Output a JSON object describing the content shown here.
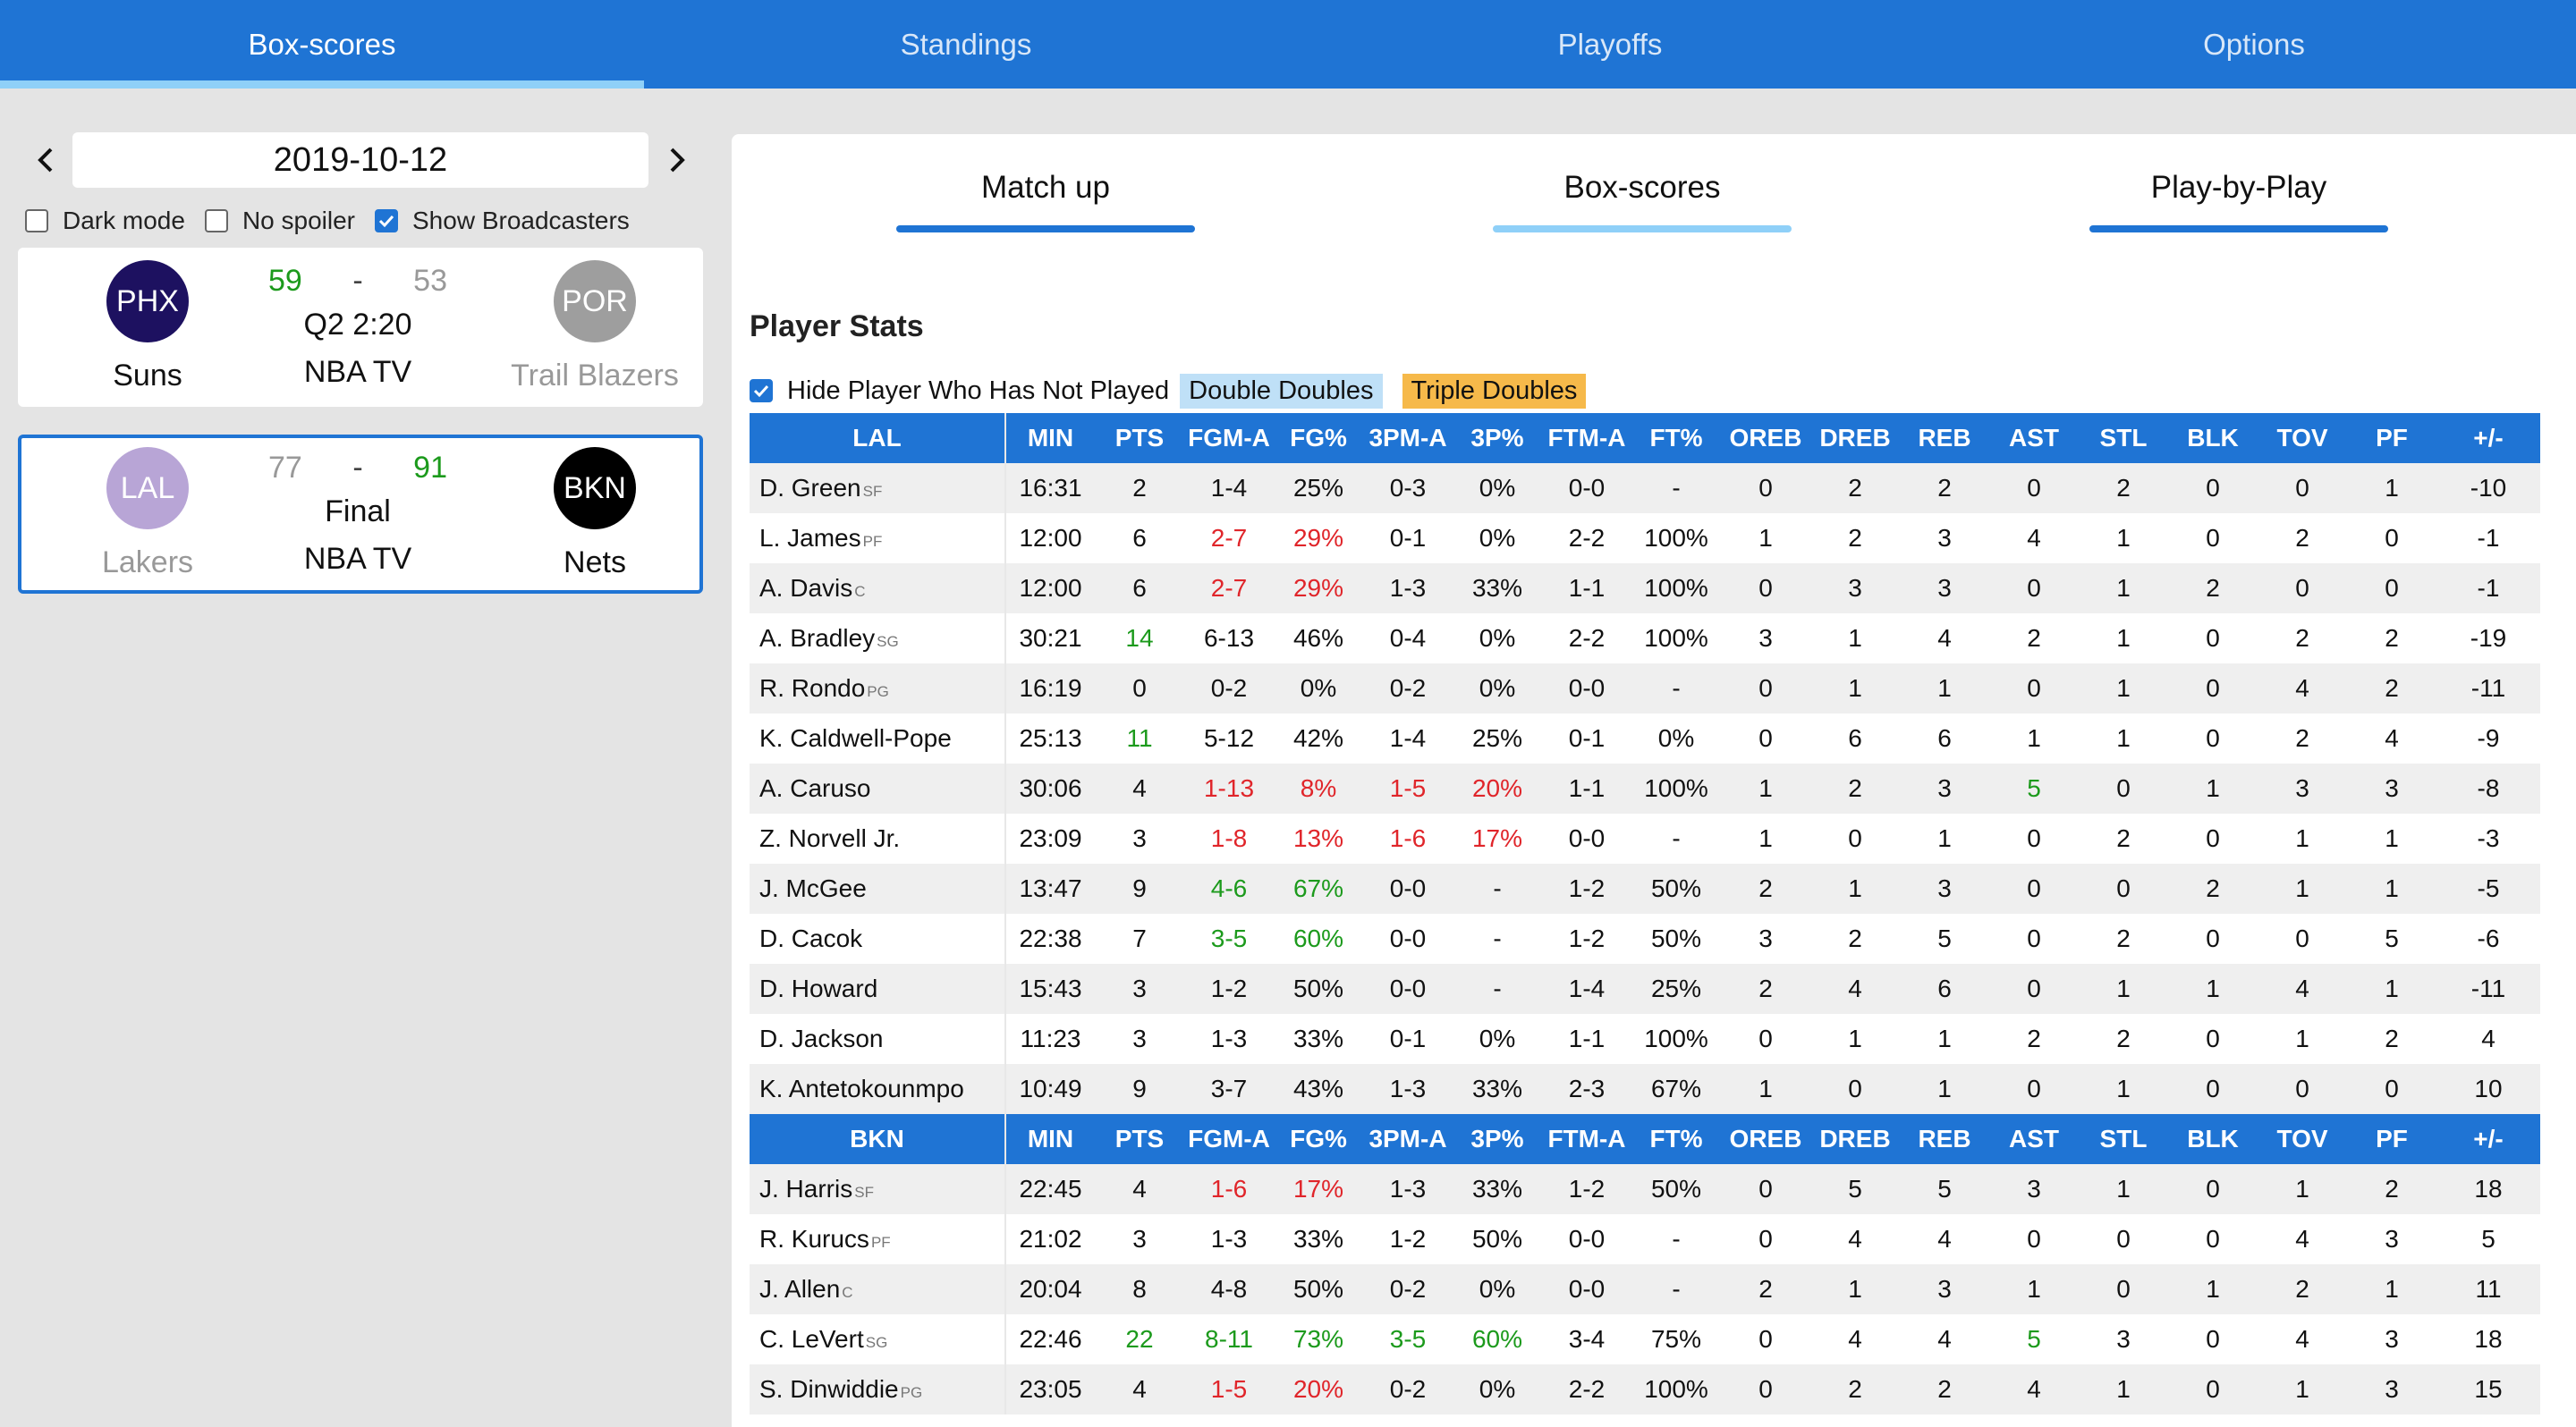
{
  "nav": {
    "tabs": [
      {
        "label": "Box-scores",
        "active": true
      },
      {
        "label": "Standings",
        "active": false
      },
      {
        "label": "Playoffs",
        "active": false
      },
      {
        "label": "Options",
        "active": false
      }
    ]
  },
  "date": {
    "value": "2019-10-12",
    "prev_icon": "chevron-left-icon",
    "next_icon": "chevron-right-icon"
  },
  "options": {
    "dark_mode": {
      "label": "Dark mode",
      "checked": false
    },
    "no_spoiler": {
      "label": "No spoiler",
      "checked": false
    },
    "show_broadcasters": {
      "label": "Show Broadcasters",
      "checked": true
    }
  },
  "games": [
    {
      "home": {
        "abbr": "PHX",
        "name": "Suns",
        "score": "59",
        "color": "#1d1160",
        "winning": true
      },
      "away": {
        "abbr": "POR",
        "name": "Trail Blazers",
        "score": "53",
        "color": "#9e9e9e",
        "winning": false
      },
      "separator": "-",
      "status": "Q2 2:20",
      "broadcast": "NBA TV"
    },
    {
      "home": {
        "abbr": "LAL",
        "name": "Lakers",
        "score": "77",
        "color": "#b8a5d6",
        "winning": false
      },
      "away": {
        "abbr": "BKN",
        "name": "Nets",
        "score": "91",
        "color": "#000000",
        "winning": true
      },
      "separator": "-",
      "status": "Final",
      "broadcast": "NBA TV"
    }
  ],
  "subtabs": [
    "Match up",
    "Box-scores",
    "Play-by-Play"
  ],
  "stats": {
    "title": "Player Stats",
    "hide_label": "Hide Player Who Has Not Played",
    "hide_checked": true,
    "double_doubles": "Double Doubles",
    "triple_doubles": "Triple Doubles",
    "columns": [
      "MIN",
      "PTS",
      "FGM-A",
      "FG%",
      "3PM-A",
      "3P%",
      "FTM-A",
      "FT%",
      "OREB",
      "DREB",
      "REB",
      "AST",
      "STL",
      "BLK",
      "TOV",
      "PF",
      "+/-"
    ],
    "teams": [
      {
        "abbr": "LAL",
        "players": [
          {
            "name": "D. Green",
            "pos": "SF",
            "stats": [
              "16:31",
              "2",
              "1-4",
              "25%",
              "0-3",
              "0%",
              "0-0",
              "-",
              "0",
              "2",
              "2",
              "0",
              "2",
              "0",
              "0",
              "1",
              "-10"
            ],
            "colors": {}
          },
          {
            "name": "L. James",
            "pos": "PF",
            "stats": [
              "12:00",
              "6",
              "2-7",
              "29%",
              "0-1",
              "0%",
              "2-2",
              "100%",
              "1",
              "2",
              "3",
              "4",
              "1",
              "0",
              "2",
              "0",
              "-1"
            ],
            "colors": {
              "2": "r",
              "3": "r"
            }
          },
          {
            "name": "A. Davis",
            "pos": "C",
            "stats": [
              "12:00",
              "6",
              "2-7",
              "29%",
              "1-3",
              "33%",
              "1-1",
              "100%",
              "0",
              "3",
              "3",
              "0",
              "1",
              "2",
              "0",
              "0",
              "-1"
            ],
            "colors": {
              "2": "r",
              "3": "r"
            }
          },
          {
            "name": "A. Bradley",
            "pos": "SG",
            "stats": [
              "30:21",
              "14",
              "6-13",
              "46%",
              "0-4",
              "0%",
              "2-2",
              "100%",
              "3",
              "1",
              "4",
              "2",
              "1",
              "0",
              "2",
              "2",
              "-19"
            ],
            "colors": {
              "1": "g"
            }
          },
          {
            "name": "R. Rondo",
            "pos": "PG",
            "stats": [
              "16:19",
              "0",
              "0-2",
              "0%",
              "0-2",
              "0%",
              "0-0",
              "-",
              "0",
              "1",
              "1",
              "0",
              "1",
              "0",
              "4",
              "2",
              "-11"
            ],
            "colors": {}
          },
          {
            "name": "K. Caldwell-Pope",
            "pos": "",
            "stats": [
              "25:13",
              "11",
              "5-12",
              "42%",
              "1-4",
              "25%",
              "0-1",
              "0%",
              "0",
              "6",
              "6",
              "1",
              "1",
              "0",
              "2",
              "4",
              "-9"
            ],
            "colors": {
              "1": "g"
            }
          },
          {
            "name": "A. Caruso",
            "pos": "",
            "stats": [
              "30:06",
              "4",
              "1-13",
              "8%",
              "1-5",
              "20%",
              "1-1",
              "100%",
              "1",
              "2",
              "3",
              "5",
              "0",
              "1",
              "3",
              "3",
              "-8"
            ],
            "colors": {
              "2": "r",
              "3": "r",
              "4": "r",
              "5": "r",
              "11": "g"
            }
          },
          {
            "name": "Z. Norvell Jr.",
            "pos": "",
            "stats": [
              "23:09",
              "3",
              "1-8",
              "13%",
              "1-6",
              "17%",
              "0-0",
              "-",
              "1",
              "0",
              "1",
              "0",
              "2",
              "0",
              "1",
              "1",
              "-3"
            ],
            "colors": {
              "2": "r",
              "3": "r",
              "4": "r",
              "5": "r"
            }
          },
          {
            "name": "J. McGee",
            "pos": "",
            "stats": [
              "13:47",
              "9",
              "4-6",
              "67%",
              "0-0",
              "-",
              "1-2",
              "50%",
              "2",
              "1",
              "3",
              "0",
              "0",
              "2",
              "1",
              "1",
              "-5"
            ],
            "colors": {
              "2": "g",
              "3": "g"
            }
          },
          {
            "name": "D. Cacok",
            "pos": "",
            "stats": [
              "22:38",
              "7",
              "3-5",
              "60%",
              "0-0",
              "-",
              "1-2",
              "50%",
              "3",
              "2",
              "5",
              "0",
              "2",
              "0",
              "0",
              "5",
              "-6"
            ],
            "colors": {
              "2": "g",
              "3": "g"
            }
          },
          {
            "name": "D. Howard",
            "pos": "",
            "stats": [
              "15:43",
              "3",
              "1-2",
              "50%",
              "0-0",
              "-",
              "1-4",
              "25%",
              "2",
              "4",
              "6",
              "0",
              "1",
              "1",
              "4",
              "1",
              "-11"
            ],
            "colors": {}
          },
          {
            "name": "D. Jackson",
            "pos": "",
            "stats": [
              "11:23",
              "3",
              "1-3",
              "33%",
              "0-1",
              "0%",
              "1-1",
              "100%",
              "0",
              "1",
              "1",
              "2",
              "2",
              "0",
              "1",
              "2",
              "4"
            ],
            "colors": {}
          },
          {
            "name": "K. Antetokounmpo",
            "pos": "",
            "stats": [
              "10:49",
              "9",
              "3-7",
              "43%",
              "1-3",
              "33%",
              "2-3",
              "67%",
              "1",
              "0",
              "1",
              "0",
              "1",
              "0",
              "0",
              "0",
              "10"
            ],
            "colors": {}
          }
        ]
      },
      {
        "abbr": "BKN",
        "players": [
          {
            "name": "J. Harris",
            "pos": "SF",
            "stats": [
              "22:45",
              "4",
              "1-6",
              "17%",
              "1-3",
              "33%",
              "1-2",
              "50%",
              "0",
              "5",
              "5",
              "3",
              "1",
              "0",
              "1",
              "2",
              "18"
            ],
            "colors": {
              "2": "r",
              "3": "r"
            }
          },
          {
            "name": "R. Kurucs",
            "pos": "PF",
            "stats": [
              "21:02",
              "3",
              "1-3",
              "33%",
              "1-2",
              "50%",
              "0-0",
              "-",
              "0",
              "4",
              "4",
              "0",
              "0",
              "0",
              "4",
              "3",
              "5"
            ],
            "colors": {}
          },
          {
            "name": "J. Allen",
            "pos": "C",
            "stats": [
              "20:04",
              "8",
              "4-8",
              "50%",
              "0-2",
              "0%",
              "0-0",
              "-",
              "2",
              "1",
              "3",
              "1",
              "0",
              "1",
              "2",
              "1",
              "11"
            ],
            "colors": {}
          },
          {
            "name": "C. LeVert",
            "pos": "SG",
            "stats": [
              "22:46",
              "22",
              "8-11",
              "73%",
              "3-5",
              "60%",
              "3-4",
              "75%",
              "0",
              "4",
              "4",
              "5",
              "3",
              "0",
              "4",
              "3",
              "18"
            ],
            "colors": {
              "1": "g",
              "2": "g",
              "3": "g",
              "4": "g",
              "5": "g",
              "11": "g"
            }
          },
          {
            "name": "S. Dinwiddie",
            "pos": "PG",
            "stats": [
              "23:05",
              "4",
              "1-5",
              "20%",
              "0-2",
              "0%",
              "2-2",
              "100%",
              "0",
              "2",
              "2",
              "4",
              "1",
              "0",
              "1",
              "3",
              "15"
            ],
            "colors": {
              "2": "r",
              "3": "r"
            }
          }
        ]
      }
    ]
  }
}
